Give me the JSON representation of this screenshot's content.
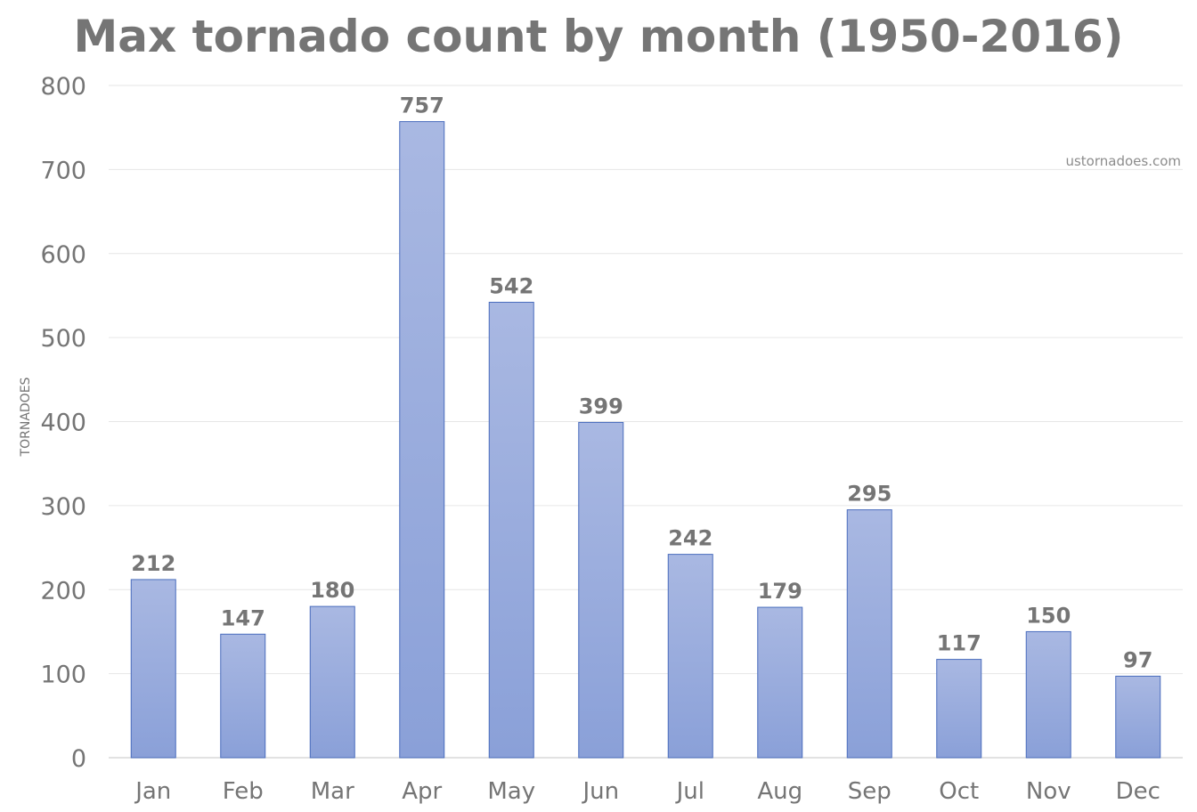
{
  "chart_data": {
    "type": "bar",
    "title": "Max tornado count by month (1950-2016)",
    "ylabel": "TORNADOES",
    "xlabel": "",
    "annotation": "ustornadoes.com",
    "categories": [
      "Jan",
      "Feb",
      "Mar",
      "Apr",
      "May",
      "Jun",
      "Jul",
      "Aug",
      "Sep",
      "Oct",
      "Nov",
      "Dec"
    ],
    "values": [
      212,
      147,
      180,
      757,
      542,
      399,
      242,
      179,
      295,
      117,
      150,
      97
    ],
    "ylim": [
      0,
      800
    ],
    "yticks": [
      0,
      100,
      200,
      300,
      400,
      500,
      600,
      700,
      800
    ],
    "grid": true,
    "legend": "none",
    "colors": {
      "bar_top": "#a9b8e2",
      "bar_bottom": "#8aa0d8",
      "bar_edge": "#4a6dbd",
      "text": "#757575",
      "grid": "#e6e6e6"
    }
  }
}
